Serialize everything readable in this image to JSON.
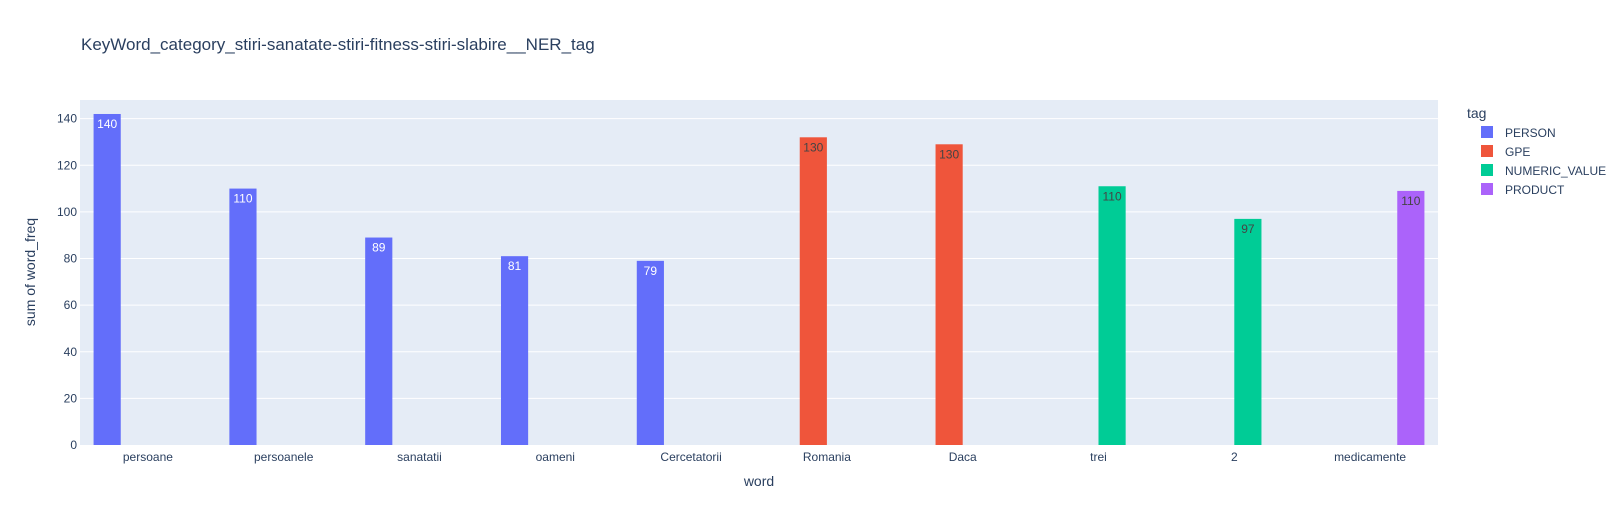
{
  "chart_data": {
    "type": "bar",
    "title": "KeyWord_category_stiri-sanatate-stiri-fitness-stiri-slabire__NER_tag",
    "xlabel": "word",
    "ylabel": "sum of word_freq",
    "ylim": [
      0,
      148
    ],
    "yticks": [
      0,
      20,
      40,
      60,
      80,
      100,
      120,
      140
    ],
    "grid": true,
    "barmode": "group",
    "legend": {
      "title": "tag",
      "position": "right"
    },
    "categories": [
      "persoane",
      "persoanele",
      "sanatatii",
      "oameni",
      "Cercetatorii",
      "Romania",
      "Daca",
      "trei",
      "2",
      "medicamente"
    ],
    "series": [
      {
        "name": "PERSON",
        "color": "#636efa",
        "label_color": "#ffffff",
        "points": [
          {
            "x": "persoane",
            "y": 142,
            "label": "140"
          },
          {
            "x": "persoanele",
            "y": 110,
            "label": "110"
          },
          {
            "x": "sanatatii",
            "y": 89,
            "label": "89"
          },
          {
            "x": "oameni",
            "y": 81,
            "label": "81"
          },
          {
            "x": "Cercetatorii",
            "y": 79,
            "label": "79"
          }
        ]
      },
      {
        "name": "GPE",
        "color": "#EF553B",
        "label_color": "#444444",
        "points": [
          {
            "x": "Romania",
            "y": 132,
            "label": "130"
          },
          {
            "x": "Daca",
            "y": 129,
            "label": "130"
          }
        ]
      },
      {
        "name": "NUMERIC_VALUE",
        "color": "#00cc96",
        "label_color": "#444444",
        "points": [
          {
            "x": "trei",
            "y": 111,
            "label": "110"
          },
          {
            "x": "2",
            "y": 97,
            "label": "97"
          }
        ]
      },
      {
        "name": "PRODUCT",
        "color": "#ab63fa",
        "label_color": "#444444",
        "points": [
          {
            "x": "medicamente",
            "y": 109,
            "label": "110"
          }
        ]
      }
    ]
  }
}
